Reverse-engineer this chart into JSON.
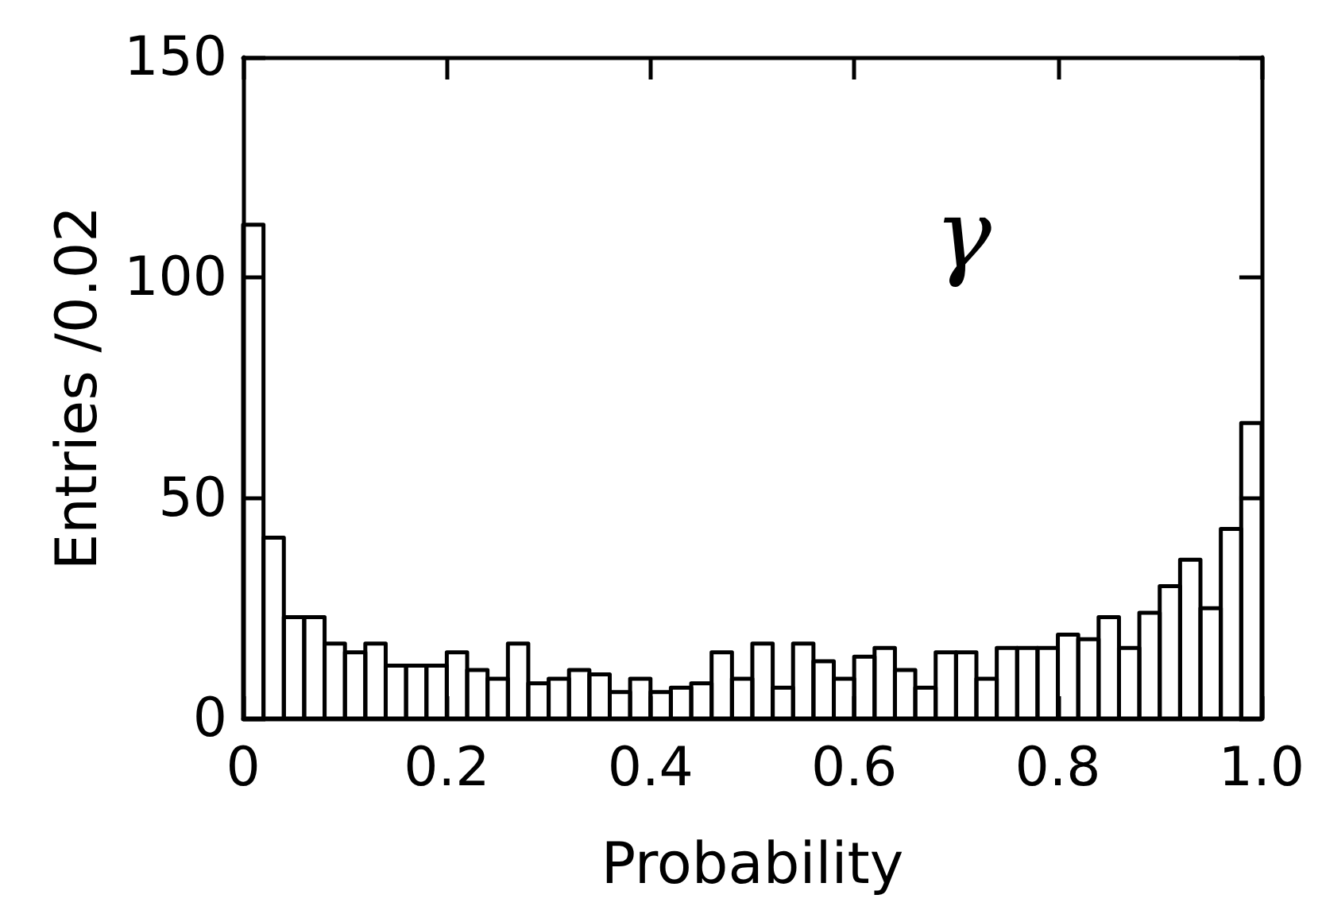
{
  "chart_data": {
    "type": "histogram",
    "xlabel": "Probability",
    "ylabel": "Entries /0.02",
    "annotations": [
      "γ"
    ],
    "bins": [
      0,
      0.02,
      0.04,
      0.06,
      0.08,
      0.1,
      0.12,
      0.14,
      0.16,
      0.18,
      0.2,
      0.22,
      0.24,
      0.26,
      0.28,
      0.3,
      0.32,
      0.34,
      0.36,
      0.38,
      0.4,
      0.42,
      0.44,
      0.46,
      0.48,
      0.5,
      0.52,
      0.54,
      0.56,
      0.58,
      0.6,
      0.62,
      0.64,
      0.66,
      0.68,
      0.7,
      0.72,
      0.74,
      0.76,
      0.78,
      0.8,
      0.82,
      0.84,
      0.86,
      0.88,
      0.9,
      0.92,
      0.94,
      0.96,
      0.98,
      1
    ],
    "values": [
      112,
      41,
      23,
      23,
      17,
      15,
      17,
      12,
      12,
      12,
      15,
      11,
      9,
      17,
      8,
      9,
      11,
      10,
      6,
      9,
      6,
      7,
      8,
      15,
      9,
      17,
      7,
      17,
      13,
      9,
      14,
      16,
      11,
      7,
      15,
      15,
      9,
      16,
      16,
      16,
      19,
      18,
      23,
      16,
      24,
      30,
      36,
      25,
      43,
      67
    ],
    "color": "#000000",
    "xlim": [
      0,
      1
    ],
    "ylim": [
      0,
      150
    ],
    "xticks": [
      0,
      0.2,
      0.4,
      0.6,
      0.8,
      {
        "value": 1,
        "label": "1.0"
      }
    ],
    "yticks": [
      0,
      50,
      100,
      150
    ],
    "grid": false
  }
}
